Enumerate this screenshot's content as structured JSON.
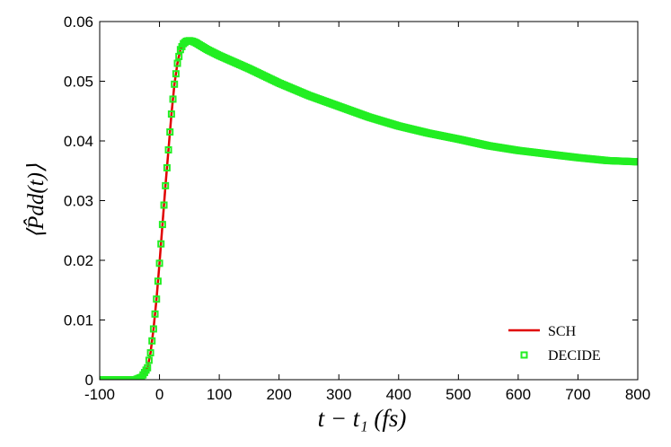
{
  "chart_data": {
    "type": "line",
    "title": "",
    "xlabel": "t − t₁ (fs)",
    "ylabel": "⟨P̂dd(t)⟩",
    "xlim": [
      -100,
      800
    ],
    "ylim": [
      0,
      0.06
    ],
    "x_ticks": [
      -100,
      0,
      100,
      200,
      300,
      400,
      500,
      600,
      700,
      800
    ],
    "y_ticks": [
      0,
      0.01,
      0.02,
      0.03,
      0.04,
      0.05,
      0.06
    ],
    "x_tick_labels": [
      "-100",
      "0",
      "100",
      "200",
      "300",
      "400",
      "500",
      "600",
      "700",
      "800"
    ],
    "y_tick_labels": [
      "0",
      "0.01",
      "0.02",
      "0.03",
      "0.04",
      "0.05",
      "0.06"
    ],
    "grid": false,
    "legend_position": "bottom-right",
    "series": [
      {
        "name": "SCH",
        "style": "line",
        "color": "#e00000",
        "x": [
          -100,
          -40,
          -30,
          -20,
          -15,
          -10,
          -5,
          0,
          5,
          10,
          15,
          20,
          25,
          30,
          35,
          40,
          45,
          50,
          55,
          60,
          70,
          80,
          100,
          150,
          200,
          250,
          300,
          350,
          400,
          450,
          500,
          550,
          600,
          650,
          700,
          750,
          800
        ],
        "y": [
          0,
          0,
          0.0004,
          0.002,
          0.0045,
          0.0085,
          0.0135,
          0.0195,
          0.026,
          0.0325,
          0.0385,
          0.0445,
          0.0495,
          0.053,
          0.0553,
          0.0563,
          0.0567,
          0.0568,
          0.0567,
          0.0565,
          0.0559,
          0.0553,
          0.0542,
          0.0519,
          0.0495,
          0.0473,
          0.0456,
          0.0437,
          0.0423,
          0.041,
          0.04,
          0.039,
          0.0382,
          0.0376,
          0.0371,
          0.0367,
          0.0365
        ]
      },
      {
        "name": "DECIDE",
        "style": "markers",
        "color": "#22ee22",
        "x": [
          -100,
          -40,
          -30,
          -20,
          -15,
          -10,
          -5,
          0,
          5,
          10,
          15,
          20,
          25,
          30,
          35,
          40,
          45,
          50,
          55,
          60,
          70,
          80,
          100,
          150,
          200,
          250,
          300,
          350,
          400,
          450,
          500,
          550,
          600,
          650,
          700,
          750,
          800
        ],
        "y": [
          0,
          0,
          0.0004,
          0.002,
          0.0045,
          0.0085,
          0.0135,
          0.0195,
          0.026,
          0.0325,
          0.0385,
          0.0445,
          0.0495,
          0.053,
          0.0553,
          0.0563,
          0.0567,
          0.0568,
          0.0567,
          0.0565,
          0.0559,
          0.0553,
          0.0543,
          0.0521,
          0.0497,
          0.0476,
          0.0458,
          0.044,
          0.0425,
          0.0413,
          0.0403,
          0.0392,
          0.0384,
          0.0378,
          0.0372,
          0.0367,
          0.0365
        ]
      }
    ]
  }
}
